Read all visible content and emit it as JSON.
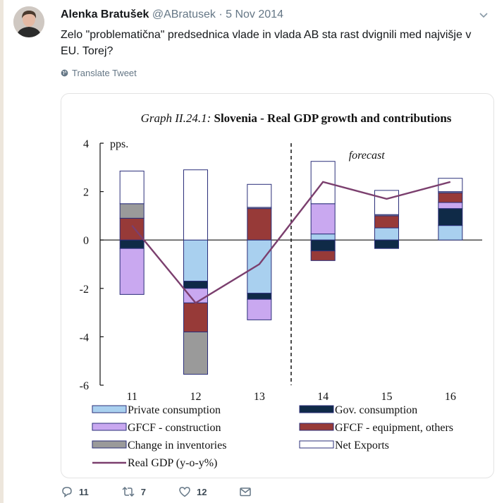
{
  "tweet": {
    "author_name": "Alenka Bratušek",
    "handle": "@ABratusek",
    "separator": " · ",
    "date": "5 Nov 2014",
    "text": "Zelo \"problematična\" predsednica vlade in vlada AB sta rast dvignili med najvišje v EU. Torej?",
    "translate_label": "Translate Tweet",
    "reply_count": "11",
    "retweet_count": "7",
    "like_count": "12",
    "icons": [
      "avatar",
      "chevron-down-icon",
      "globe-icon",
      "reply-icon",
      "retweet-icon",
      "like-icon",
      "message-icon"
    ]
  },
  "chart_data": {
    "type": "bar",
    "stacked": true,
    "title_prefix": "Graph II.24.1:",
    "title": "Slovenia - Real GDP growth and contributions",
    "ylabel": "pps.",
    "annotation": "forecast",
    "categories": [
      "11",
      "12",
      "13",
      "14",
      "15",
      "16"
    ],
    "ylim": [
      -6,
      4
    ],
    "yticks": [
      4,
      2,
      0,
      -2,
      -4,
      -6
    ],
    "forecast_after": "13",
    "series": [
      {
        "name": "Private consumption",
        "color": "#a9d0ef",
        "values": [
          0.0,
          -1.7,
          -2.2,
          0.25,
          0.5,
          0.6
        ]
      },
      {
        "name": "Gov. consumption",
        "color": "#0f2a47",
        "values": [
          -0.35,
          -0.3,
          -0.25,
          -0.45,
          -0.35,
          0.7
        ]
      },
      {
        "name": "GFCF - construction",
        "color": "#c9a8f0",
        "values": [
          -1.9,
          -0.6,
          -0.85,
          1.25,
          0.0,
          0.25
        ]
      },
      {
        "name": "GFCF - equipment, others",
        "color": "#973a38",
        "values": [
          0.9,
          -1.2,
          1.3,
          -0.4,
          0.5,
          0.4
        ]
      },
      {
        "name": "Change in inventories",
        "color": "#9a9a9a",
        "values": [
          0.6,
          -1.75,
          0.05,
          0.0,
          0.05,
          0.05
        ]
      },
      {
        "name": "Net Exports",
        "color": "#ffffff",
        "values": [
          1.35,
          2.9,
          0.95,
          1.75,
          1.0,
          0.55
        ]
      }
    ],
    "line": {
      "name": "Real GDP (y-o-y%)",
      "color": "#7b3f6e",
      "values": [
        0.6,
        -2.6,
        -1.0,
        2.4,
        1.7,
        2.4
      ]
    },
    "legend": [
      {
        "name": "Private consumption",
        "color": "#a9d0ef",
        "kind": "box"
      },
      {
        "name": "Gov. consumption",
        "color": "#0f2a47",
        "kind": "box"
      },
      {
        "name": "GFCF - construction",
        "color": "#c9a8f0",
        "kind": "box"
      },
      {
        "name": "GFCF - equipment, others",
        "color": "#973a38",
        "kind": "box"
      },
      {
        "name": "Change in inventories",
        "color": "#9a9a9a",
        "kind": "box"
      },
      {
        "name": "Net Exports",
        "color": "#ffffff",
        "kind": "box"
      },
      {
        "name": "Real GDP (y-o-y%)",
        "color": "#7b3f6e",
        "kind": "line"
      }
    ]
  }
}
